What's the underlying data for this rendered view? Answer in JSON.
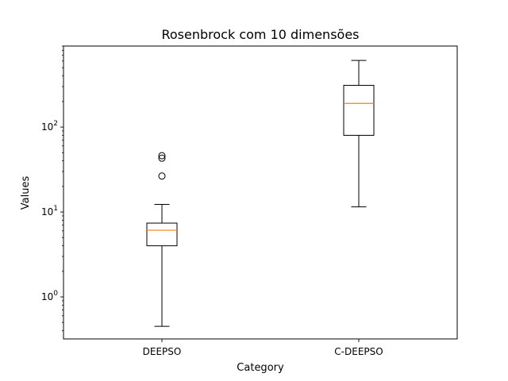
{
  "chart_data": {
    "type": "box",
    "title": "Rosenbrock com 10 dimensões",
    "xlabel": "Category",
    "ylabel": "Values",
    "yscale": "log",
    "ylim": [
      0.32,
      900
    ],
    "grid": false,
    "categories": [
      "DEEPSO",
      "C-DEEPSO"
    ],
    "boxes": [
      {
        "name": "DEEPSO",
        "whisker_low": 0.45,
        "q1": 4.0,
        "median": 6.1,
        "q3": 7.4,
        "whisker_high": 12.3,
        "outliers": [
          26.5,
          43.0,
          46.0
        ]
      },
      {
        "name": "C-DEEPSO",
        "whisker_low": 11.5,
        "q1": 80.0,
        "median": 190.0,
        "q3": 310.0,
        "whisker_high": 610.0,
        "outliers": []
      }
    ],
    "yticks": [
      {
        "value": 1,
        "base": "10",
        "exp": "0"
      },
      {
        "value": 10,
        "base": "10",
        "exp": "1"
      },
      {
        "value": 100,
        "base": "10",
        "exp": "2"
      }
    ],
    "colors": {
      "box": "#000000",
      "median": "#ff7f0e",
      "outlier": "#000000"
    }
  }
}
